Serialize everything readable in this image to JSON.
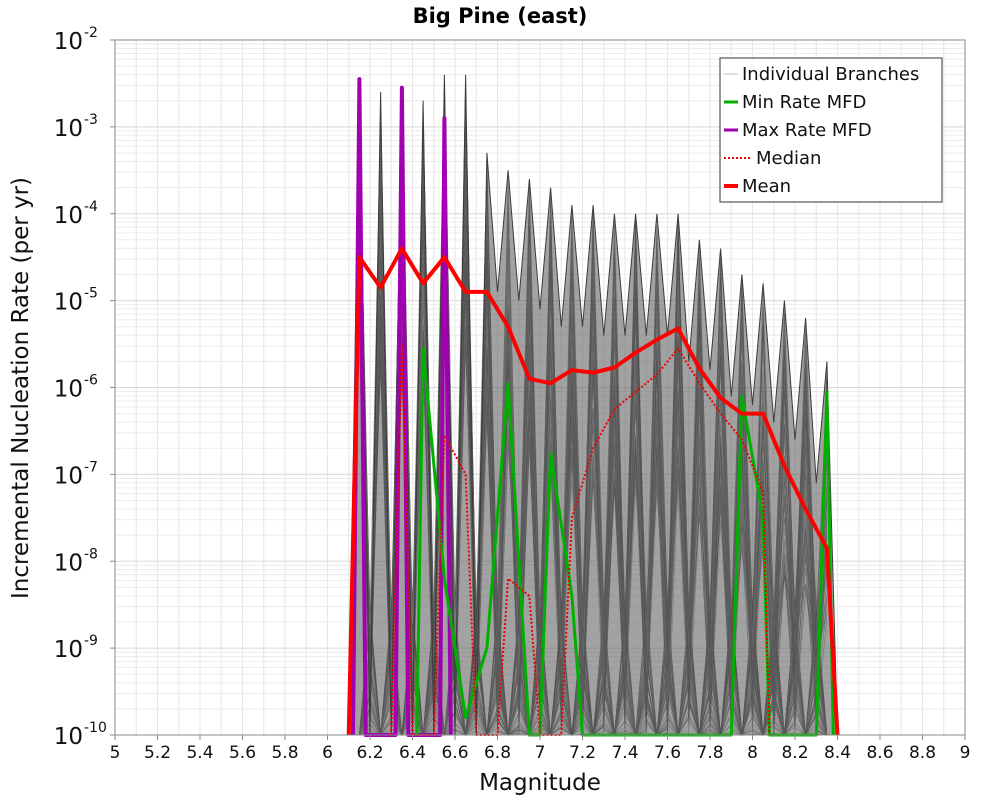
{
  "chart_data": {
    "type": "line",
    "title": "Big Pine (east)",
    "xlabel": "Magnitude",
    "ylabel": "Incremental Nucleation Rate (per yr)",
    "xlim": [
      5,
      9
    ],
    "ylim_log10": [
      -10,
      -2
    ],
    "y_scale": "log",
    "grid": true,
    "legend_position": "top-right",
    "x_ticks": [
      "5",
      "5.2",
      "5.4",
      "5.6",
      "5.8",
      "6",
      "6.2",
      "6.4",
      "6.6",
      "6.8",
      "7",
      "7.2",
      "7.4",
      "7.6",
      "7.8",
      "8",
      "8.2",
      "8.4",
      "8.6",
      "8.8",
      "9"
    ],
    "y_ticks": [
      {
        "base": "10",
        "exp": "-2"
      },
      {
        "base": "10",
        "exp": "-3"
      },
      {
        "base": "10",
        "exp": "-4"
      },
      {
        "base": "10",
        "exp": "-5"
      },
      {
        "base": "10",
        "exp": "-6"
      },
      {
        "base": "10",
        "exp": "-7"
      },
      {
        "base": "10",
        "exp": "-8"
      },
      {
        "base": "10",
        "exp": "-9"
      },
      {
        "base": "10",
        "exp": "-10"
      }
    ],
    "legend": [
      {
        "label": "Individual Branches",
        "color": "#bdbdbd",
        "style": "thin"
      },
      {
        "label": "Min Rate MFD",
        "color": "#00b000",
        "style": "solid"
      },
      {
        "label": "Max Rate MFD",
        "color": "#a000b0",
        "style": "solid"
      },
      {
        "label": "Median",
        "color": "#ee0000",
        "style": "dotted"
      },
      {
        "label": "Mean",
        "color": "#ff0000",
        "style": "thick"
      }
    ],
    "branch_envelope": {
      "color": "#505050",
      "upper_log10": [
        [
          6.15,
          -2.6
        ],
        [
          6.25,
          -2.6
        ],
        [
          6.35,
          -2.7
        ],
        [
          6.45,
          -2.7
        ],
        [
          6.55,
          -2.4
        ],
        [
          6.65,
          -2.4
        ],
        [
          6.75,
          -3.3
        ],
        [
          6.85,
          -3.5
        ],
        [
          6.95,
          -3.6
        ],
        [
          7.05,
          -3.7
        ],
        [
          7.15,
          -3.9
        ],
        [
          7.25,
          -3.9
        ],
        [
          7.35,
          -4.0
        ],
        [
          7.45,
          -4.0
        ],
        [
          7.55,
          -4.0
        ],
        [
          7.65,
          -4.0
        ],
        [
          7.75,
          -4.3
        ],
        [
          7.85,
          -4.4
        ],
        [
          7.95,
          -4.7
        ],
        [
          8.05,
          -4.8
        ],
        [
          8.15,
          -5.0
        ],
        [
          8.25,
          -5.2
        ],
        [
          8.35,
          -5.7
        ]
      ]
    },
    "series": [
      {
        "name": "Mean",
        "color": "#ff0000",
        "points_log10": [
          [
            6.1,
            -10
          ],
          [
            6.15,
            -4.5
          ],
          [
            6.25,
            -4.85
          ],
          [
            6.35,
            -4.4
          ],
          [
            6.45,
            -4.8
          ],
          [
            6.55,
            -4.5
          ],
          [
            6.65,
            -4.9
          ],
          [
            6.75,
            -4.9
          ],
          [
            6.85,
            -5.3
          ],
          [
            6.95,
            -5.9
          ],
          [
            7.05,
            -5.95
          ],
          [
            7.15,
            -5.8
          ],
          [
            7.25,
            -5.83
          ],
          [
            7.35,
            -5.77
          ],
          [
            7.45,
            -5.6
          ],
          [
            7.55,
            -5.45
          ],
          [
            7.65,
            -5.32
          ],
          [
            7.75,
            -5.78
          ],
          [
            7.85,
            -6.12
          ],
          [
            7.95,
            -6.3
          ],
          [
            8.05,
            -6.3
          ],
          [
            8.15,
            -6.9
          ],
          [
            8.25,
            -7.4
          ],
          [
            8.35,
            -7.85
          ],
          [
            8.4,
            -10
          ]
        ]
      },
      {
        "name": "Median",
        "color": "#ee0000",
        "points_log10": [
          [
            6.3,
            -10
          ],
          [
            6.35,
            -5.5
          ],
          [
            6.4,
            -10
          ],
          [
            6.5,
            -10
          ],
          [
            6.55,
            -6.55
          ],
          [
            6.65,
            -7.0
          ],
          [
            6.7,
            -10
          ],
          [
            6.8,
            -10
          ],
          [
            6.85,
            -8.2
          ],
          [
            6.95,
            -8.4
          ],
          [
            7.0,
            -10
          ],
          [
            7.1,
            -10
          ],
          [
            7.15,
            -7.5
          ],
          [
            7.25,
            -6.7
          ],
          [
            7.35,
            -6.25
          ],
          [
            7.45,
            -6.05
          ],
          [
            7.55,
            -5.85
          ],
          [
            7.65,
            -5.55
          ],
          [
            7.75,
            -5.95
          ],
          [
            7.85,
            -6.3
          ],
          [
            7.95,
            -6.6
          ],
          [
            8.05,
            -7.2
          ],
          [
            8.08,
            -10
          ]
        ]
      },
      {
        "name": "Min Rate MFD",
        "color": "#00b000",
        "points_log10": [
          [
            6.42,
            -10
          ],
          [
            6.45,
            -5.55
          ],
          [
            6.55,
            -8.2
          ],
          [
            6.65,
            -9.8
          ],
          [
            6.75,
            -9.0
          ],
          [
            6.85,
            -5.95
          ],
          [
            6.95,
            -10
          ],
          [
            7.0,
            -10
          ],
          [
            7.05,
            -6.75
          ],
          [
            7.15,
            -8.4
          ],
          [
            7.2,
            -10
          ],
          [
            7.9,
            -10
          ],
          [
            7.95,
            -6.1
          ],
          [
            8.05,
            -7.5
          ],
          [
            8.08,
            -10
          ],
          [
            8.3,
            -10
          ],
          [
            8.35,
            -6.05
          ],
          [
            8.38,
            -10
          ]
        ]
      },
      {
        "name": "Max Rate MFD",
        "color": "#a000b0",
        "points_log10": [
          [
            6.12,
            -10
          ],
          [
            6.15,
            -2.45
          ],
          [
            6.18,
            -10
          ],
          [
            6.32,
            -10
          ],
          [
            6.35,
            -2.55
          ],
          [
            6.38,
            -10
          ],
          [
            6.53,
            -10
          ],
          [
            6.55,
            -2.9
          ],
          [
            6.58,
            -10
          ]
        ]
      }
    ]
  }
}
